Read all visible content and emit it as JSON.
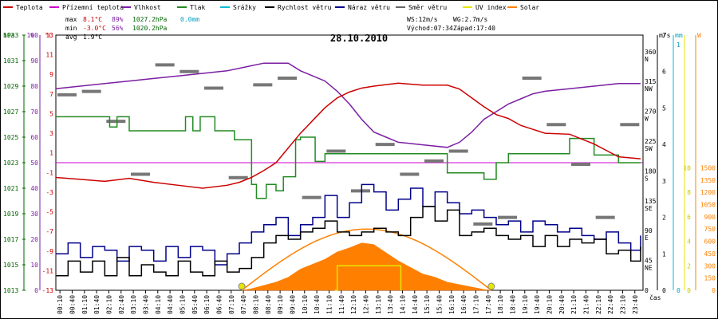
{
  "chart_data": {
    "type": "line",
    "title": "28.10.2010",
    "xlabel": "čas",
    "legend": [
      {
        "name": "Teplota",
        "color": "#cc0000"
      },
      {
        "name": "Přízemní teplota",
        "color": "#cc00cc"
      },
      {
        "name": "Vlhkost",
        "color": "#7a1fa2"
      },
      {
        "name": "Tlak",
        "color": "#228b22"
      },
      {
        "name": "Srážky",
        "color": "#00bcd4"
      },
      {
        "name": "Rychlost větru",
        "color": "#000000"
      },
      {
        "name": "Náraz větru",
        "color": "#00008b"
      },
      {
        "name": "Směr větru",
        "color": "#666666"
      },
      {
        "name": "UV index",
        "color": "#e6e600"
      },
      {
        "name": "Solar",
        "color": "#ff8000"
      }
    ],
    "stats": {
      "max_label": "max",
      "min_label": "min",
      "avg_label": "avg",
      "max_temp": "8.1°C",
      "max_hum": "89%",
      "max_press": "1027.2hPa",
      "max_rain": "0.0mm",
      "min_temp": "-3.0°C",
      "min_hum": "56%",
      "min_press": "1020.2hPa",
      "avg_temp": "1.9°C",
      "ws": "WS:12m/s",
      "wg": "WG:2.7m/s",
      "sunrise": "Východ:07:34",
      "sunset": "Západ:17:40"
    },
    "axes": {
      "hpa": {
        "label": "hPa",
        "ticks": [
          "1033",
          "1031",
          "1029",
          "1027",
          "1025",
          "1023",
          "1021",
          "1019",
          "1017",
          "1015",
          "1013"
        ]
      },
      "pct": {
        "label": "%",
        "ticks": [
          "100",
          "90",
          "80",
          "70",
          "60",
          "50",
          "40",
          "30",
          "20",
          "10",
          "0"
        ]
      },
      "degc": {
        "label": "°C",
        "ticks": [
          "13",
          "11",
          "9",
          "7",
          "5",
          "3",
          "1",
          "-1",
          "-3",
          "-5",
          "-7",
          "-9",
          "-11",
          "-13"
        ]
      },
      "ms": {
        "label": "m/s",
        "ticks": [
          "7",
          "6",
          "5",
          "4",
          "3",
          "2",
          "1",
          "0"
        ]
      },
      "mm": {
        "label": "mm",
        "ticks": [
          "1",
          "0"
        ]
      },
      "w": {
        "label": "W",
        "ticks": [
          "1500",
          "1350",
          "1200",
          "1050",
          "900",
          "750",
          "600",
          "450",
          "300",
          "150",
          "0"
        ]
      },
      "uv": {
        "ticks": [
          "10",
          "8",
          "6",
          "4",
          "2",
          "0"
        ]
      },
      "dir": {
        "ticks": [
          "360",
          "N",
          "315",
          "NW",
          "270",
          "W",
          "225",
          "SW",
          "180",
          "S",
          "135",
          "SE",
          "90",
          "E",
          "45",
          "NE",
          "0"
        ]
      }
    },
    "times": [
      "00:10",
      "00:40",
      "01:10",
      "01:40",
      "02:10",
      "02:40",
      "03:10",
      "03:40",
      "04:10",
      "04:40",
      "05:10",
      "05:40",
      "06:10",
      "06:40",
      "07:10",
      "07:40",
      "08:10",
      "08:40",
      "09:10",
      "09:40",
      "10:10",
      "10:40",
      "11:10",
      "11:40",
      "12:10",
      "12:40",
      "13:10",
      "13:40",
      "14:10",
      "14:40",
      "15:10",
      "15:40",
      "16:10",
      "16:40",
      "17:10",
      "17:40",
      "18:10",
      "18:40",
      "19:10",
      "19:40",
      "20:10",
      "20:40",
      "21:10",
      "21:40",
      "22:10",
      "22:40",
      "23:10",
      "23:40"
    ],
    "series": [
      {
        "name": "Teplota",
        "unit": "°C",
        "x": [
          0,
          1,
          2,
          3,
          4,
          5,
          6,
          7,
          7.5,
          8,
          8.5,
          9,
          9.5,
          10,
          10.5,
          11,
          11.5,
          12,
          12.5,
          13,
          14,
          15,
          16,
          16.5,
          17,
          17.5,
          18,
          18.5,
          19,
          19.5,
          20,
          21,
          22,
          23,
          23.9
        ],
        "values": [
          -1.5,
          -1.7,
          -1.9,
          -1.6,
          -2.0,
          -2.3,
          -2.6,
          -2.3,
          -2.0,
          -1.5,
          -0.8,
          0,
          1.5,
          3,
          4.3,
          5.6,
          6.6,
          7.2,
          7.6,
          7.8,
          8.1,
          7.9,
          7.9,
          7.5,
          6.6,
          5.7,
          4.9,
          4.5,
          3.8,
          3.4,
          3.0,
          2.9,
          1.9,
          0.6,
          0.4
        ]
      },
      {
        "name": "Vlhkost",
        "unit": "%",
        "x": [
          0,
          1,
          2,
          3,
          4,
          5,
          6,
          7,
          7.5,
          8,
          8.5,
          9,
          9.5,
          10,
          10.5,
          11,
          11.5,
          12,
          12.5,
          13,
          13.5,
          14,
          15,
          16,
          16.5,
          17,
          17.5,
          18,
          18.5,
          19,
          19.5,
          20,
          21,
          22,
          23,
          23.9
        ],
        "values": [
          79,
          80,
          81,
          82,
          83,
          84,
          85,
          86,
          87,
          88,
          89,
          89,
          89,
          86,
          84,
          82,
          78,
          73,
          67,
          62,
          60,
          58,
          57,
          56,
          58,
          62,
          67,
          70,
          73,
          75,
          77,
          78,
          79,
          80,
          81,
          81
        ]
      },
      {
        "name": "Tlak",
        "unit": "hPa",
        "x": [
          0,
          1,
          2,
          2.2,
          2.5,
          3,
          5,
          5.3,
          5.6,
          5.9,
          6.5,
          7,
          7.3,
          8,
          8.2,
          8.6,
          9,
          9.3,
          9.8,
          10,
          10.6,
          11,
          12,
          13,
          14,
          15,
          16,
          17,
          17.5,
          18,
          18.5,
          19,
          20,
          21,
          22,
          23,
          23.9
        ],
        "values": [
          1026.6,
          1026.6,
          1026.6,
          1025.8,
          1026.6,
          1025.5,
          1025.5,
          1026.6,
          1025.5,
          1026.6,
          1025.5,
          1025.5,
          1024.8,
          1021.3,
          1020.2,
          1021.3,
          1020.8,
          1021.9,
          1024.8,
          1025.0,
          1023.1,
          1023.7,
          1023.7,
          1023.7,
          1023.7,
          1023.7,
          1022.2,
          1022.2,
          1021.7,
          1023.0,
          1023.7,
          1023.7,
          1023.7,
          1024.9,
          1023.6,
          1023.0,
          1023.0
        ]
      },
      {
        "name": "Rychlost větru",
        "unit": "m/s",
        "x": [
          0,
          0.5,
          1,
          1.5,
          2,
          2.5,
          3,
          3.5,
          4,
          4.5,
          5,
          5.5,
          6,
          6.5,
          7,
          7.5,
          8,
          8.5,
          9,
          9.5,
          10,
          10.5,
          11,
          11.5,
          12,
          12.5,
          13,
          13.5,
          14,
          14.5,
          15,
          15.5,
          16,
          16.5,
          17,
          17.5,
          18,
          18.5,
          19,
          19.5,
          20,
          20.5,
          21,
          21.5,
          22,
          22.5,
          23,
          23.5,
          23.9
        ],
        "values": [
          0.4,
          0.8,
          0.5,
          0.8,
          0.4,
          0.9,
          0.4,
          0.7,
          0.5,
          0.4,
          0.8,
          0.5,
          0.4,
          0.8,
          0.5,
          0.6,
          0.9,
          1.3,
          1.5,
          1.4,
          1.6,
          1.7,
          1.9,
          1.6,
          1.5,
          1.6,
          1.7,
          1.6,
          1.5,
          2.0,
          2.3,
          1.9,
          2.2,
          1.5,
          1.6,
          1.7,
          1.5,
          1.4,
          1.5,
          1.2,
          1.5,
          1.2,
          1.4,
          1.3,
          1.4,
          1.0,
          1.1,
          0.8,
          1.2
        ]
      },
      {
        "name": "Náraz větru",
        "unit": "m/s",
        "x": [
          0,
          0.5,
          1,
          1.5,
          2,
          2.5,
          3,
          3.5,
          4,
          4.5,
          5,
          5.5,
          6,
          6.5,
          7,
          7.5,
          8,
          8.5,
          9,
          9.5,
          10,
          10.5,
          11,
          11.5,
          12,
          12.5,
          13,
          13.5,
          14,
          14.5,
          15,
          15.5,
          16,
          16.5,
          17,
          17.5,
          18,
          18.5,
          19,
          19.5,
          20,
          20.5,
          21,
          21.5,
          22,
          22.5,
          23,
          23.5,
          23.9
        ],
        "values": [
          1.0,
          1.3,
          0.9,
          1.2,
          1.1,
          0.8,
          1.2,
          1.1,
          0.8,
          1.2,
          0.9,
          1.2,
          1.1,
          0.7,
          1.0,
          1.3,
          1.6,
          1.8,
          2.0,
          1.5,
          1.8,
          2.0,
          2.6,
          2.0,
          2.4,
          2.9,
          2.7,
          2.2,
          2.5,
          2.8,
          2.3,
          2.7,
          2.4,
          2.1,
          2.2,
          2.0,
          1.8,
          1.9,
          1.6,
          1.9,
          1.8,
          1.6,
          1.7,
          1.5,
          1.4,
          1.6,
          1.3,
          1.1,
          1.5
        ]
      },
      {
        "name": "Solar",
        "unit": "W",
        "x": [
          7.6,
          8,
          8.5,
          9,
          9.5,
          10,
          10.5,
          11,
          11.5,
          12,
          12.5,
          13,
          13.5,
          14,
          14.5,
          15,
          15.5,
          16,
          16.5,
          17,
          17.5,
          17.8
        ],
        "values": [
          0,
          20,
          60,
          100,
          160,
          260,
          320,
          380,
          470,
          520,
          580,
          560,
          460,
          360,
          280,
          200,
          160,
          100,
          70,
          40,
          10,
          0
        ]
      },
      {
        "name": "UV index",
        "unit": "",
        "x": [
          11.4,
          11.5,
          14,
          14.1
        ],
        "values": [
          0,
          2,
          2,
          0
        ]
      },
      {
        "name": "Směr větru",
        "unit": "°",
        "x": [
          0,
          1,
          2,
          3,
          4,
          5,
          6,
          7,
          8,
          9,
          10,
          11,
          12,
          13,
          14,
          15,
          16,
          17,
          18,
          19,
          20,
          21,
          22,
          23
        ],
        "values": [
          295,
          300,
          255,
          175,
          340,
          330,
          305,
          170,
          310,
          320,
          140,
          210,
          150,
          220,
          175,
          195,
          210,
          100,
          110,
          320,
          250,
          190,
          110,
          250
        ]
      }
    ],
    "solar_curve_x": [
      7.6,
      17.8
    ],
    "solar_curve_peak": 750,
    "grid": false
  }
}
